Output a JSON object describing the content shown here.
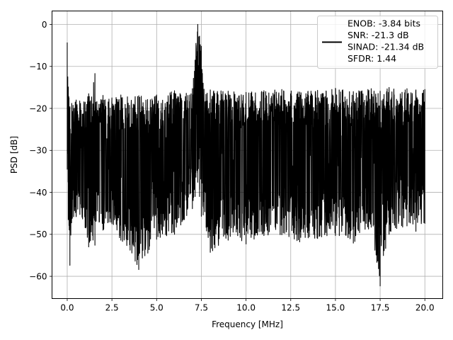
{
  "chart_data": {
    "type": "line",
    "title": "",
    "xlabel": "Frequency [MHz]",
    "ylabel": "PSD [dB]",
    "xlim": [
      -0.85,
      21.0
    ],
    "ylim": [
      -65.3,
      3.2
    ],
    "xticks": [
      0.0,
      2.5,
      5.0,
      7.5,
      10.0,
      12.5,
      15.0,
      17.5,
      20.0
    ],
    "xtick_labels": [
      "0.0",
      "2.5",
      "5.0",
      "7.5",
      "10.0",
      "12.5",
      "15.0",
      "17.5",
      "20.0"
    ],
    "yticks": [
      0,
      -10,
      -20,
      -30,
      -40,
      -50,
      -60
    ],
    "ytick_labels": [
      "0",
      "−10",
      "−20",
      "−30",
      "−40",
      "−50",
      "−60"
    ],
    "grid": true,
    "legend_position": "top-right",
    "line_color": "#000000",
    "legend_entries": [
      "ENOB: -3.84 bits",
      "SNR: -21.3 dB",
      "SINAD: -21.34 dB",
      "SFDR: 1.44"
    ],
    "series": [
      {
        "x": [
          0.0,
          0.03,
          0.06,
          0.1,
          0.15,
          0.25,
          0.5,
          1.0,
          1.2,
          1.3,
          1.55,
          1.6,
          2.0,
          2.5,
          3.0,
          3.8,
          4.0,
          5.0,
          6.0,
          7.0,
          7.15,
          7.2,
          7.3,
          7.4,
          7.5,
          7.6,
          8.0,
          9.0,
          10.0,
          11.0,
          12.0,
          13.0,
          14.0,
          15.0,
          16.0,
          17.0,
          17.5,
          18.0,
          19.0,
          19.5,
          20.0
        ],
        "y_upper": [
          -4.3,
          -12.5,
          -14.9,
          -17.5,
          -19.6,
          -18.8,
          -18.0,
          -18.5,
          -16.5,
          -18.2,
          -11.7,
          -18.5,
          -16.9,
          -17.5,
          -16.8,
          -17.2,
          -17.0,
          -16.8,
          -15.8,
          -15.3,
          -8.5,
          -4.5,
          0.0,
          -2.8,
          -5.2,
          -14.0,
          -15.6,
          -15.9,
          -16.2,
          -15.8,
          -15.5,
          -16.1,
          -15.7,
          -15.2,
          -16.0,
          -15.3,
          -15.9,
          -15.0,
          -15.3,
          -15.6,
          -15.5
        ],
        "y_lower": [
          -34.5,
          -30.0,
          -46.5,
          -47.9,
          -57.4,
          -46.4,
          -45.8,
          -48.4,
          -53.0,
          -51.5,
          -52.6,
          -46.9,
          -49.0,
          -47.5,
          -51.4,
          -56.4,
          -58.4,
          -51.2,
          -50.0,
          -43.9,
          -41.0,
          -36.4,
          -37.6,
          -41.0,
          -45.7,
          -45.4,
          -54.3,
          -51.4,
          -52.3,
          -50.3,
          -50.1,
          -51.8,
          -51.0,
          -50.3,
          -52.1,
          -48.3,
          -62.3,
          -50.0,
          -48.0,
          -49.3,
          -47.4
        ]
      }
    ]
  }
}
